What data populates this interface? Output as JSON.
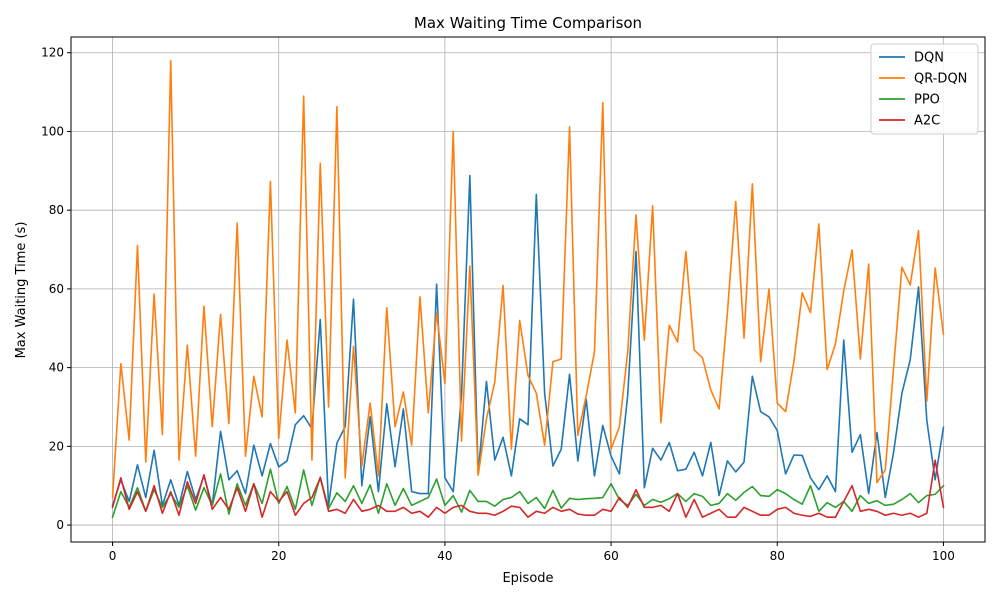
{
  "chart_data": {
    "type": "line",
    "title": "Max Waiting Time Comparison",
    "xlabel": "Episode",
    "ylabel": "Max Waiting Time (s)",
    "xlim": [
      -5,
      105
    ],
    "ylim": [
      -4.3,
      124
    ],
    "xticks": [
      0,
      20,
      40,
      60,
      80,
      100
    ],
    "yticks": [
      0,
      20,
      40,
      60,
      80,
      100,
      120
    ],
    "xtick_labels": [
      "0",
      "20",
      "40",
      "60",
      "80",
      "100"
    ],
    "ytick_labels": [
      "0",
      "20",
      "40",
      "60",
      "80",
      "100",
      "120"
    ],
    "grid": true,
    "legend_position": "top-right",
    "x": [
      0,
      1,
      2,
      3,
      4,
      5,
      6,
      7,
      8,
      9,
      10,
      11,
      12,
      13,
      14,
      15,
      16,
      17,
      18,
      19,
      20,
      21,
      22,
      23,
      24,
      25,
      26,
      27,
      28,
      29,
      30,
      31,
      32,
      33,
      34,
      35,
      36,
      37,
      38,
      39,
      40,
      41,
      42,
      43,
      44,
      45,
      46,
      47,
      48,
      49,
      50,
      51,
      52,
      53,
      54,
      55,
      56,
      57,
      58,
      59,
      60,
      61,
      62,
      63,
      64,
      65,
      66,
      67,
      68,
      69,
      70,
      71,
      72,
      73,
      74,
      75,
      76,
      77,
      78,
      79,
      80,
      81,
      82,
      83,
      84,
      85,
      86,
      87,
      88,
      89,
      90,
      91,
      92,
      93,
      94,
      95,
      96,
      97,
      98,
      99,
      100
    ],
    "series": [
      {
        "name": "DQN",
        "color": "#1f77b4",
        "values": [
          5.0,
          11.5,
          6.0,
          15.3,
          7.0,
          19.0,
          5.0,
          11.5,
          5.0,
          13.6,
          6.5,
          12.5,
          5.0,
          23.8,
          11.5,
          13.8,
          8.0,
          20.3,
          12.5,
          20.7,
          14.8,
          16.3,
          25.5,
          27.8,
          24.5,
          52.2,
          5.0,
          20.8,
          25.0,
          57.4,
          10.0,
          27.5,
          8.5,
          30.8,
          14.8,
          29.5,
          8.5,
          8.0,
          8.0,
          61.2,
          12.0,
          8.5,
          33.0,
          88.8,
          13.0,
          36.5,
          16.5,
          22.3,
          12.5,
          27.0,
          25.5,
          84.0,
          33.5,
          15.0,
          19.3,
          38.3,
          16.3,
          32.0,
          12.5,
          25.3,
          17.5,
          13.0,
          33.0,
          69.5,
          9.5,
          19.5,
          16.5,
          21.0,
          13.8,
          14.2,
          18.5,
          12.5,
          21.0,
          7.5,
          16.3,
          13.5,
          16.0,
          37.8,
          28.8,
          27.5,
          24.0,
          13.0,
          17.8,
          17.7,
          12.0,
          9.0,
          12.5,
          8.5,
          47.0,
          18.5,
          23.0,
          8.0,
          23.5,
          7.0,
          18.5,
          33.5,
          42.0,
          60.5,
          26.5,
          11.5,
          24.8
        ]
      },
      {
        "name": "QR-DQN",
        "color": "#ff7f0e",
        "values": [
          7.0,
          41.0,
          21.6,
          71.0,
          16.0,
          58.7,
          23.0,
          118.0,
          16.5,
          45.7,
          17.5,
          55.6,
          25.0,
          53.5,
          25.8,
          76.7,
          17.5,
          37.8,
          27.5,
          87.3,
          22.0,
          47.0,
          28.5,
          109.0,
          16.5,
          91.9,
          30.0,
          106.3,
          12.0,
          45.4,
          15.0,
          31.0,
          12.5,
          55.2,
          25.0,
          33.8,
          20.3,
          58.0,
          28.5,
          54.0,
          36.0,
          100.0,
          21.3,
          65.8,
          12.7,
          27.0,
          36.3,
          60.9,
          19.3,
          52.0,
          38.0,
          33.5,
          20.3,
          41.5,
          42.2,
          101.2,
          22.8,
          32.8,
          44.0,
          107.3,
          19.3,
          25.0,
          44.0,
          78.8,
          47.0,
          81.1,
          26.0,
          50.8,
          46.5,
          69.5,
          44.5,
          42.5,
          34.3,
          29.5,
          54.0,
          82.2,
          47.5,
          86.7,
          41.5,
          60.0,
          31.0,
          28.8,
          41.5,
          59.0,
          54.0,
          76.5,
          39.5,
          46.0,
          59.5,
          69.9,
          42.2,
          66.3,
          10.8,
          14.0,
          40.0,
          65.5,
          61.0,
          74.8,
          31.5,
          65.3,
          48.5
        ]
      },
      {
        "name": "PPO",
        "color": "#2ca02c",
        "values": [
          2.0,
          8.5,
          4.5,
          9.5,
          3.5,
          9.0,
          4.5,
          8.0,
          4.5,
          10.0,
          3.8,
          9.5,
          5.0,
          13.0,
          2.8,
          10.5,
          5.0,
          10.5,
          5.5,
          14.2,
          5.5,
          9.8,
          4.0,
          14.0,
          5.0,
          12.2,
          4.2,
          8.2,
          6.0,
          10.0,
          5.5,
          10.2,
          3.0,
          10.5,
          5.0,
          9.3,
          5.0,
          6.0,
          7.0,
          11.7,
          5.0,
          7.5,
          3.3,
          8.8,
          6.0,
          6.0,
          4.8,
          6.5,
          7.0,
          8.5,
          5.5,
          7.0,
          4.2,
          8.8,
          4.3,
          6.8,
          6.5,
          6.7,
          6.8,
          7.0,
          10.5,
          6.5,
          5.0,
          7.8,
          5.0,
          6.5,
          5.8,
          6.7,
          8.0,
          6.0,
          8.0,
          7.3,
          5.0,
          5.5,
          8.0,
          6.3,
          8.3,
          9.8,
          7.5,
          7.3,
          9.0,
          8.0,
          6.5,
          5.3,
          10.0,
          3.5,
          5.7,
          4.5,
          6.0,
          3.5,
          7.5,
          5.5,
          6.2,
          5.0,
          5.3,
          6.5,
          8.0,
          5.7,
          7.5,
          7.8,
          10.0
        ]
      },
      {
        "name": "A2C",
        "color": "#d62728",
        "values": [
          4.5,
          12.0,
          4.0,
          8.5,
          3.5,
          10.0,
          3.0,
          8.5,
          2.5,
          11.0,
          5.5,
          12.8,
          4.0,
          7.0,
          4.0,
          9.5,
          3.5,
          10.5,
          2.0,
          8.5,
          6.0,
          8.5,
          2.5,
          5.5,
          7.0,
          12.0,
          3.5,
          4.0,
          3.0,
          6.5,
          3.5,
          4.0,
          5.0,
          3.5,
          3.5,
          4.5,
          3.0,
          3.5,
          2.0,
          4.5,
          3.0,
          4.5,
          5.0,
          3.5,
          3.0,
          3.0,
          2.5,
          3.5,
          4.8,
          4.5,
          2.0,
          3.5,
          3.0,
          4.5,
          3.5,
          4.0,
          2.8,
          2.5,
          2.5,
          4.0,
          3.5,
          7.0,
          4.5,
          9.0,
          4.5,
          4.5,
          5.0,
          3.5,
          8.0,
          2.0,
          6.5,
          2.0,
          3.0,
          4.0,
          2.0,
          2.0,
          4.5,
          3.5,
          2.5,
          2.5,
          4.0,
          4.5,
          3.0,
          2.5,
          2.2,
          3.0,
          2.0,
          2.0,
          6.0,
          10.0,
          3.5,
          4.0,
          3.5,
          2.5,
          3.0,
          2.5,
          3.0,
          2.0,
          3.0,
          16.5,
          4.5
        ]
      }
    ]
  }
}
